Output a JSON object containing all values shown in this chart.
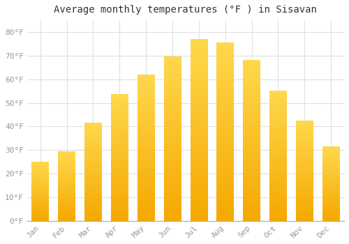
{
  "title": "Average monthly temperatures (°F ) in Sisavan",
  "months": [
    "Jan",
    "Feb",
    "Mar",
    "Apr",
    "May",
    "Jun",
    "Jul",
    "Aug",
    "Sep",
    "Oct",
    "Nov",
    "Dec"
  ],
  "values": [
    25,
    29.5,
    41.5,
    53.5,
    62,
    69.5,
    77,
    75.5,
    68,
    55,
    42.5,
    31.5
  ],
  "bar_color_bottom": "#F5A800",
  "bar_color_top": "#FFD84D",
  "background_color": "#FFFFFF",
  "grid_color": "#E0E0E0",
  "ylim": [
    0,
    85
  ],
  "yticks": [
    0,
    10,
    20,
    30,
    40,
    50,
    60,
    70,
    80
  ],
  "ylabel_suffix": "°F",
  "title_fontsize": 10,
  "tick_fontsize": 8,
  "tick_font_color": "#999999",
  "title_color": "#333333"
}
